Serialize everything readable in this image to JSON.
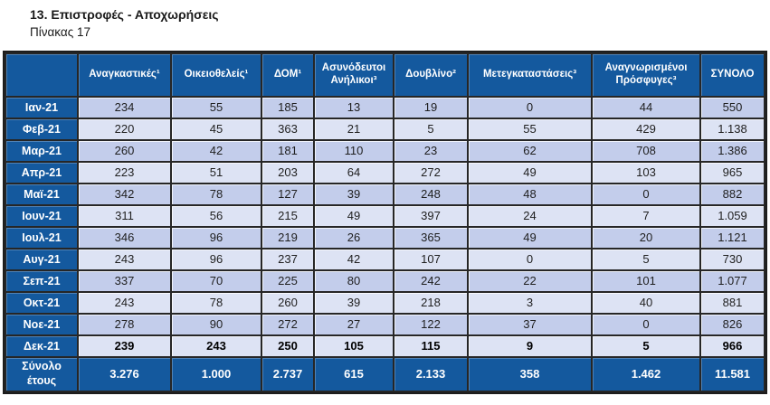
{
  "header": {
    "title": "13. Επιστροφές - Αποχωρήσεις",
    "subtitle": "Πίνακας 17"
  },
  "colors": {
    "header_blue": "#14599E",
    "band_dark": "#C3CDEB",
    "band_light": "#DDE3F4",
    "grid": "#262626",
    "cell_text": "#1F1F1F"
  },
  "table": {
    "columns": [
      "",
      "Αναγκαστικές¹",
      "Οικειοθελείς¹",
      "ΔΟΜ¹",
      "Ασυνόδευτοι Ανήλικοι³",
      "Δουβλίνο²",
      "Μετεγκαταστάσεις³",
      "Αναγνωρισμένοι Πρόσφυγες³",
      "ΣΥΝΟΛΟ"
    ],
    "rows": [
      {
        "label": "Ιαν-21",
        "values": [
          "234",
          "55",
          "185",
          "13",
          "19",
          "0",
          "44",
          "550"
        ]
      },
      {
        "label": "Φεβ-21",
        "values": [
          "220",
          "45",
          "363",
          "21",
          "5",
          "55",
          "429",
          "1.138"
        ]
      },
      {
        "label": "Μαρ-21",
        "values": [
          "260",
          "42",
          "181",
          "110",
          "23",
          "62",
          "708",
          "1.386"
        ]
      },
      {
        "label": "Απρ-21",
        "values": [
          "223",
          "51",
          "203",
          "64",
          "272",
          "49",
          "103",
          "965"
        ]
      },
      {
        "label": "Μαϊ-21",
        "values": [
          "342",
          "78",
          "127",
          "39",
          "248",
          "48",
          "0",
          "882"
        ]
      },
      {
        "label": "Ιουν-21",
        "values": [
          "311",
          "56",
          "215",
          "49",
          "397",
          "24",
          "7",
          "1.059"
        ]
      },
      {
        "label": "Ιουλ-21",
        "values": [
          "346",
          "96",
          "219",
          "26",
          "365",
          "49",
          "20",
          "1.121"
        ]
      },
      {
        "label": "Αυγ-21",
        "values": [
          "243",
          "96",
          "237",
          "42",
          "107",
          "0",
          "5",
          "730"
        ]
      },
      {
        "label": "Σεπ-21",
        "values": [
          "337",
          "70",
          "225",
          "80",
          "242",
          "22",
          "101",
          "1.077"
        ]
      },
      {
        "label": "Οκτ-21",
        "values": [
          "243",
          "78",
          "260",
          "39",
          "218",
          "3",
          "40",
          "881"
        ]
      },
      {
        "label": "Νοε-21",
        "values": [
          "278",
          "90",
          "272",
          "27",
          "122",
          "37",
          "0",
          "826"
        ]
      },
      {
        "label": "Δεκ-21",
        "values": [
          "239",
          "243",
          "250",
          "105",
          "115",
          "9",
          "5",
          "966"
        ],
        "bold": true
      }
    ],
    "total_row": {
      "label": "Σύνολο έτους",
      "values": [
        "3.276",
        "1.000",
        "2.737",
        "615",
        "2.133",
        "358",
        "1.462",
        "11.581"
      ]
    }
  }
}
